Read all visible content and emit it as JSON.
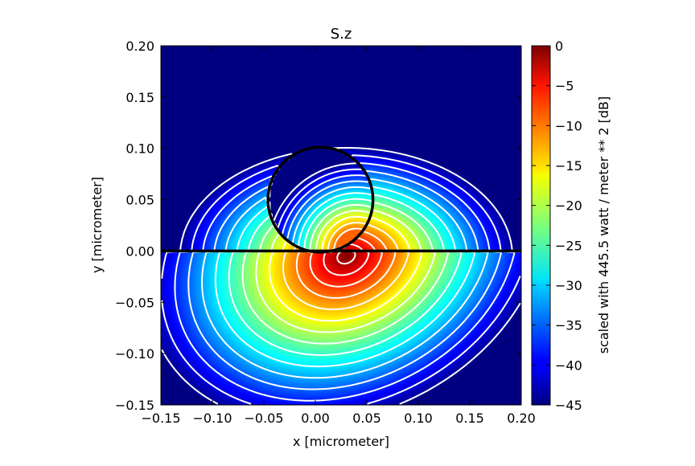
{
  "chart_data": {
    "type": "heatmap",
    "title": "S.z",
    "xlabel": "x [micrometer]",
    "ylabel": "y [micrometer]",
    "xlim": [
      -0.15,
      0.2
    ],
    "ylim": [
      -0.15,
      0.2
    ],
    "x_ticks": [
      -0.15,
      -0.1,
      -0.05,
      0.0,
      0.05,
      0.1,
      0.15,
      0.2
    ],
    "x_tick_labels": [
      "−0.15",
      "−0.10",
      "−0.05",
      "0.00",
      "0.05",
      "0.10",
      "0.15",
      "0.20"
    ],
    "y_ticks": [
      -0.15,
      -0.1,
      -0.05,
      0.0,
      0.05,
      0.1,
      0.15,
      0.2
    ],
    "y_tick_labels": [
      "−0.15",
      "−0.10",
      "−0.05",
      "0.00",
      "0.05",
      "0.10",
      "0.15",
      "0.20"
    ],
    "colormap": "jet",
    "colorbar": {
      "label": "scaled with 445.5 watt / meter ** 2 [dB]",
      "range": [
        -45,
        0
      ],
      "ticks": [
        0,
        -5,
        -10,
        -15,
        -20,
        -25,
        -30,
        -35,
        -40,
        -45
      ],
      "tick_labels": [
        "0",
        "−5",
        "−10",
        "−15",
        "−20",
        "−25",
        "−30",
        "−35",
        "−40",
        "−45"
      ]
    },
    "field_peak": {
      "x": 0.03,
      "y": -0.005,
      "value_db": 0
    },
    "circle": {
      "center_x": 0.005,
      "center_y": 0.05,
      "radius": 0.051
    },
    "horizontal_line": {
      "y": 0.0
    },
    "contour_color": "#ffffff",
    "outline_color": "#000000"
  }
}
